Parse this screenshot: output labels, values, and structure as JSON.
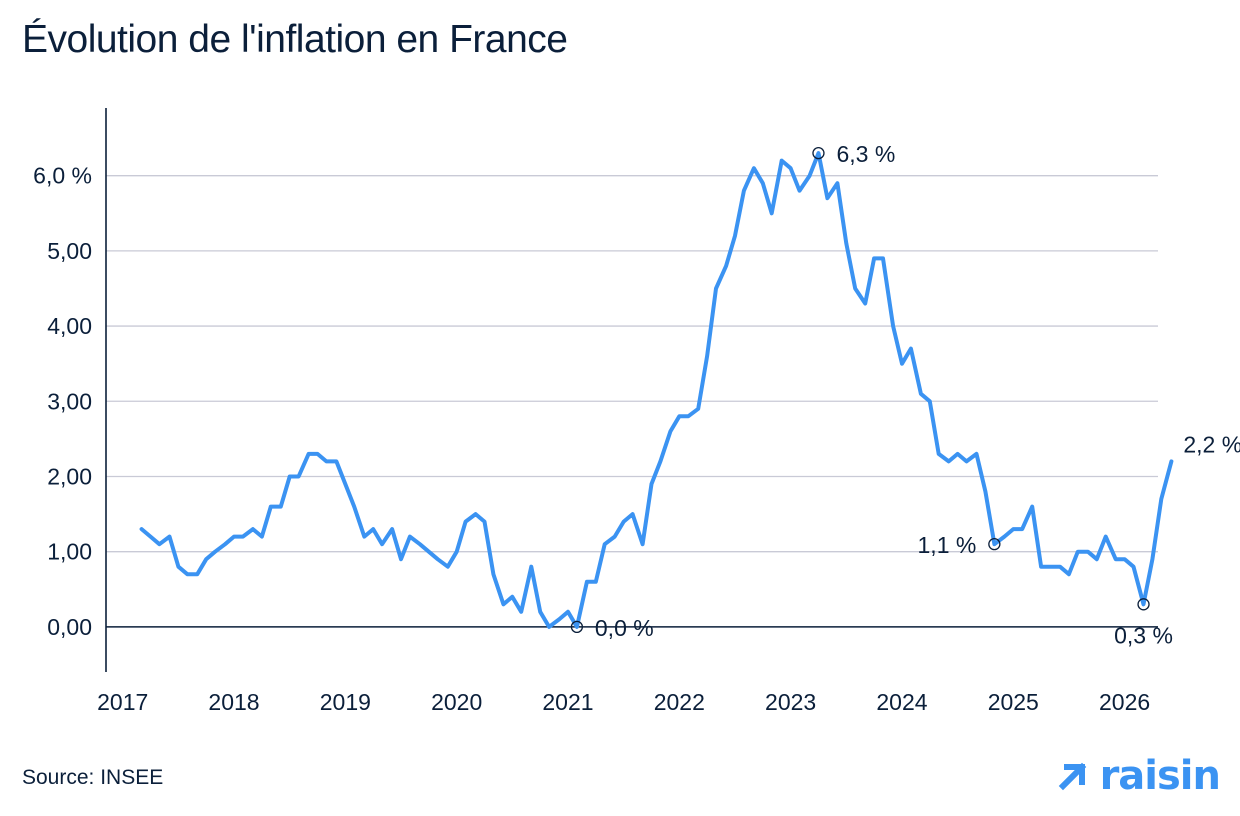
{
  "header": {
    "title": "Évolution de l'inflation en France"
  },
  "footer": {
    "source": "Source: INSEE",
    "brand_name": "raisin",
    "brand_icon": "arrow-up-right-icon"
  },
  "colors": {
    "line": "#3b93f2",
    "text": "#0b1f3a",
    "grid": "#c9cad6",
    "axis": "#0b1f3a"
  },
  "chart_data": {
    "type": "line",
    "title": "Évolution de l'inflation en France",
    "xlabel": "",
    "ylabel": "",
    "xlim": [
      2016.85,
      2026.3
    ],
    "ylim": [
      -0.6,
      6.9
    ],
    "grid": "horizontal",
    "x_ticks": [
      {
        "value": 2017,
        "label": "2017"
      },
      {
        "value": 2018,
        "label": "2018"
      },
      {
        "value": 2019,
        "label": "2019"
      },
      {
        "value": 2020,
        "label": "2020"
      },
      {
        "value": 2021,
        "label": "2021"
      },
      {
        "value": 2022,
        "label": "2022"
      },
      {
        "value": 2023,
        "label": "2023"
      },
      {
        "value": 2024,
        "label": "2024"
      },
      {
        "value": 2025,
        "label": "2025"
      },
      {
        "value": 2026,
        "label": "2026"
      }
    ],
    "y_ticks": [
      {
        "value": 0,
        "label": "0,00"
      },
      {
        "value": 1,
        "label": "1,00"
      },
      {
        "value": 2,
        "label": "2,00"
      },
      {
        "value": 3,
        "label": "3,00"
      },
      {
        "value": 4,
        "label": "4,00"
      },
      {
        "value": 5,
        "label": "5,00"
      },
      {
        "value": 6,
        "label": "6,0 %"
      }
    ],
    "series": [
      {
        "points": [
          [
            2017.17,
            1.3
          ],
          [
            2017.25,
            1.2
          ],
          [
            2017.33,
            1.1
          ],
          [
            2017.42,
            1.2
          ],
          [
            2017.5,
            0.8
          ],
          [
            2017.58,
            0.7
          ],
          [
            2017.67,
            0.7
          ],
          [
            2017.75,
            0.9
          ],
          [
            2017.83,
            1.0
          ],
          [
            2017.92,
            1.1
          ],
          [
            2018.0,
            1.2
          ],
          [
            2018.08,
            1.2
          ],
          [
            2018.17,
            1.3
          ],
          [
            2018.25,
            1.2
          ],
          [
            2018.33,
            1.6
          ],
          [
            2018.42,
            1.6
          ],
          [
            2018.5,
            2.0
          ],
          [
            2018.58,
            2.0
          ],
          [
            2018.67,
            2.3
          ],
          [
            2018.75,
            2.3
          ],
          [
            2018.83,
            2.2
          ],
          [
            2018.92,
            2.2
          ],
          [
            2019.0,
            1.9
          ],
          [
            2019.08,
            1.6
          ],
          [
            2019.17,
            1.2
          ],
          [
            2019.25,
            1.3
          ],
          [
            2019.33,
            1.1
          ],
          [
            2019.42,
            1.3
          ],
          [
            2019.5,
            0.9
          ],
          [
            2019.58,
            1.2
          ],
          [
            2019.67,
            1.1
          ],
          [
            2019.75,
            1.0
          ],
          [
            2019.83,
            0.9
          ],
          [
            2019.92,
            0.8
          ],
          [
            2020.0,
            1.0
          ],
          [
            2020.08,
            1.4
          ],
          [
            2020.17,
            1.5
          ],
          [
            2020.25,
            1.4
          ],
          [
            2020.33,
            0.7
          ],
          [
            2020.42,
            0.3
          ],
          [
            2020.5,
            0.4
          ],
          [
            2020.58,
            0.2
          ],
          [
            2020.67,
            0.8
          ],
          [
            2020.75,
            0.2
          ],
          [
            2020.83,
            0.0
          ],
          [
            2020.92,
            0.1
          ],
          [
            2021.0,
            0.2
          ],
          [
            2021.08,
            0.0
          ],
          [
            2021.17,
            0.6
          ],
          [
            2021.25,
            0.6
          ],
          [
            2021.33,
            1.1
          ],
          [
            2021.42,
            1.2
          ],
          [
            2021.5,
            1.4
          ],
          [
            2021.58,
            1.5
          ],
          [
            2021.67,
            1.1
          ],
          [
            2021.75,
            1.9
          ],
          [
            2021.83,
            2.2
          ],
          [
            2021.92,
            2.6
          ],
          [
            2022.0,
            2.8
          ],
          [
            2022.08,
            2.8
          ],
          [
            2022.17,
            2.9
          ],
          [
            2022.25,
            3.6
          ],
          [
            2022.33,
            4.5
          ],
          [
            2022.42,
            4.8
          ],
          [
            2022.5,
            5.2
          ],
          [
            2022.58,
            5.8
          ],
          [
            2022.67,
            6.1
          ],
          [
            2022.75,
            5.9
          ],
          [
            2022.83,
            5.5
          ],
          [
            2022.92,
            6.2
          ],
          [
            2023.0,
            6.1
          ],
          [
            2023.08,
            5.8
          ],
          [
            2023.17,
            6.0
          ],
          [
            2023.25,
            6.3
          ],
          [
            2023.33,
            5.7
          ],
          [
            2023.42,
            5.9
          ],
          [
            2023.5,
            5.1
          ],
          [
            2023.58,
            4.5
          ],
          [
            2023.67,
            4.3
          ],
          [
            2023.75,
            4.9
          ],
          [
            2023.83,
            4.9
          ],
          [
            2023.92,
            4.0
          ],
          [
            2024.0,
            3.5
          ],
          [
            2024.08,
            3.7
          ],
          [
            2024.17,
            3.1
          ],
          [
            2024.25,
            3.0
          ],
          [
            2024.33,
            2.3
          ],
          [
            2024.42,
            2.2
          ],
          [
            2024.5,
            2.3
          ],
          [
            2024.58,
            2.2
          ],
          [
            2024.67,
            2.3
          ],
          [
            2024.75,
            1.8
          ],
          [
            2024.83,
            1.1
          ],
          [
            2024.92,
            1.2
          ],
          [
            2025.0,
            1.3
          ],
          [
            2025.08,
            1.3
          ],
          [
            2025.17,
            1.6
          ],
          [
            2025.25,
            0.8
          ],
          [
            2025.33,
            0.8
          ],
          [
            2025.42,
            0.8
          ],
          [
            2025.5,
            0.7
          ],
          [
            2025.58,
            1.0
          ],
          [
            2025.67,
            1.0
          ],
          [
            2025.75,
            0.9
          ],
          [
            2025.83,
            1.2
          ],
          [
            2025.92,
            0.9
          ],
          [
            2026.0,
            0.9
          ],
          [
            2026.08,
            0.8
          ],
          [
            2026.17,
            0.3
          ],
          [
            2026.25,
            0.9
          ],
          [
            2026.33,
            1.7
          ],
          [
            2026.42,
            2.2
          ]
        ]
      }
    ],
    "annotations": [
      {
        "x": 2021.08,
        "y": 0.0,
        "label": "0,0 %",
        "marker": true,
        "anchor": "right"
      },
      {
        "x": 2023.25,
        "y": 6.3,
        "label": "6,3 %",
        "marker": true,
        "anchor": "right"
      },
      {
        "x": 2024.83,
        "y": 1.1,
        "label": "1,1 %",
        "marker": true,
        "anchor": "left"
      },
      {
        "x": 2026.17,
        "y": 0.3,
        "label": "0,3 %",
        "marker": true,
        "anchor": "below"
      },
      {
        "x": 2026.42,
        "y": 2.2,
        "label": "2,2 %",
        "marker": false,
        "anchor": "above-right"
      }
    ]
  }
}
